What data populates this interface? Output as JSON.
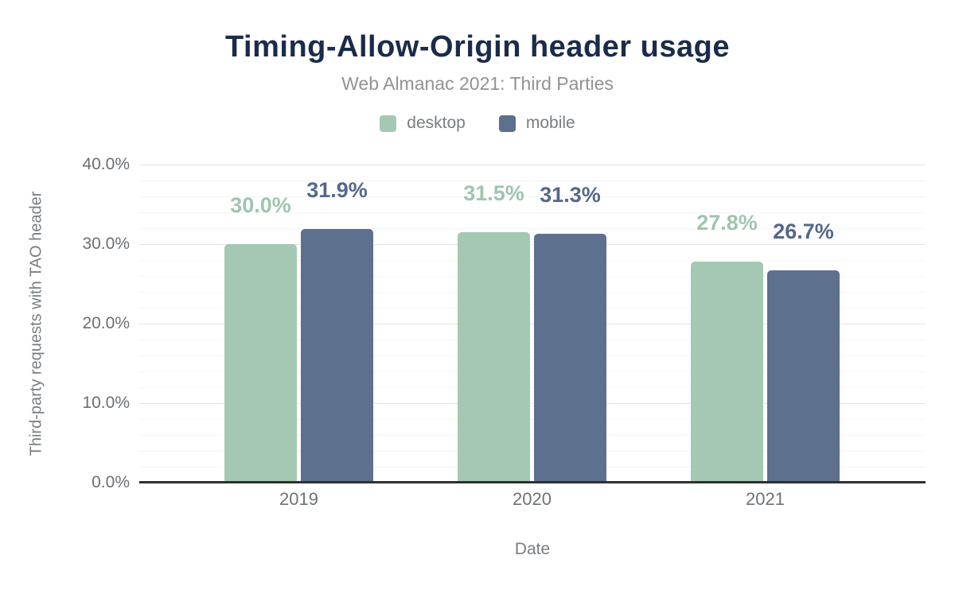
{
  "chart_data": {
    "type": "bar",
    "title": "Timing-Allow-Origin header usage",
    "subtitle": "Web Almanac 2021: Third Parties",
    "categories": [
      "2019",
      "2020",
      "2021"
    ],
    "series": [
      {
        "name": "desktop",
        "color": "#a5c8b4",
        "label_color": "#9fc5ae",
        "values": [
          30.0,
          31.5,
          27.8
        ],
        "data_labels": [
          "30.0%",
          "31.5%",
          "27.8%"
        ]
      },
      {
        "name": "mobile",
        "color": "#5d708d",
        "label_color": "#54688a",
        "values": [
          31.9,
          31.3,
          26.7
        ],
        "data_labels": [
          "31.9%",
          "31.3%",
          "26.7%"
        ]
      }
    ],
    "xlabel": "Date",
    "ylabel": "Third-party requests with TAO header",
    "ylim": [
      0,
      40
    ],
    "ytick_values": [
      0,
      10,
      20,
      30,
      40
    ],
    "yticks": [
      "0.0%",
      "10.0%",
      "20.0%",
      "30.0%",
      "40.0%"
    ],
    "minor_grid_step": 2,
    "major_grid_step": 10,
    "grid": "horizontal",
    "legend_position": "top",
    "colors": {
      "title": "#1b2b4b",
      "subtitle": "#909294",
      "axis_line": "#2f2f2f",
      "tick_text": "#6b6f73",
      "background": "#ffffff"
    }
  }
}
